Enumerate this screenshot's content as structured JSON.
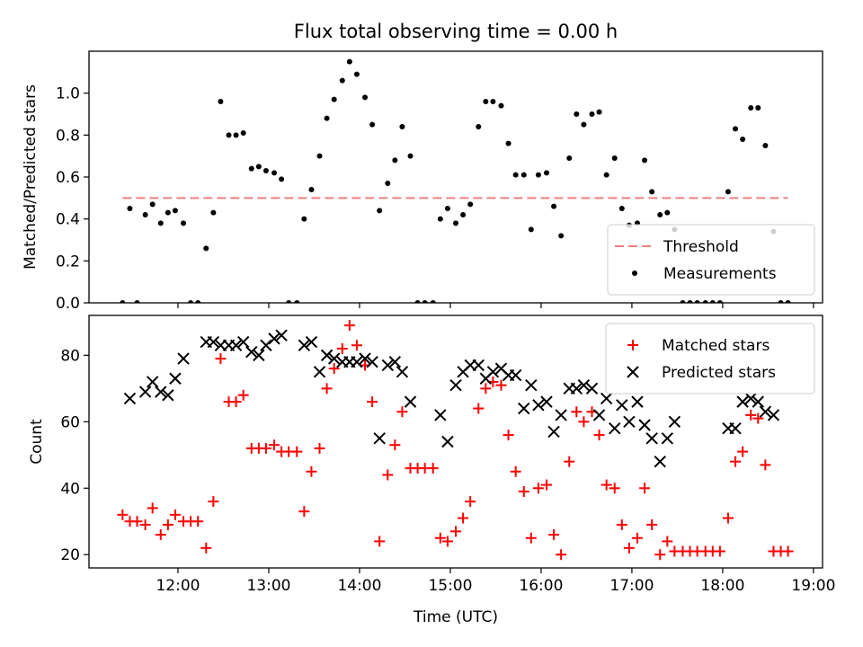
{
  "figure": {
    "title": "Flux total observing time = 0.00 h"
  },
  "chart_data": [
    {
      "type": "scatter",
      "title": "Flux total observing time = 0.00 h",
      "xlabel": "",
      "ylabel": "Matched/Predicted stars",
      "x_unit": "hours (UTC)",
      "xlim": [
        11.02,
        19.1
      ],
      "ylim": [
        0.0,
        1.2
      ],
      "y_ticks": [
        "0.0",
        "0.2",
        "0.4",
        "0.6",
        "0.8",
        "1.0"
      ],
      "x_ticks": [
        12,
        13,
        14,
        15,
        16,
        17,
        18,
        19
      ],
      "legend_position": "lower right",
      "threshold": {
        "name": "Threshold",
        "value": 0.5,
        "x_range": [
          11.39,
          18.72
        ],
        "color": "#f08080",
        "style": "dashed"
      },
      "series": [
        {
          "name": "Measurements",
          "marker": "dot",
          "color": "#000000",
          "points": [
            [
              11.39,
              0.0
            ],
            [
              11.47,
              0.45
            ],
            [
              11.55,
              0.0
            ],
            [
              11.64,
              0.42
            ],
            [
              11.72,
              0.47
            ],
            [
              11.81,
              0.38
            ],
            [
              11.89,
              0.43
            ],
            [
              11.97,
              0.44
            ],
            [
              12.06,
              0.38
            ],
            [
              12.14,
              0.0
            ],
            [
              12.22,
              0.0
            ],
            [
              12.31,
              0.26
            ],
            [
              12.39,
              0.43
            ],
            [
              12.47,
              0.96
            ],
            [
              12.56,
              0.8
            ],
            [
              12.64,
              0.8
            ],
            [
              12.72,
              0.81
            ],
            [
              12.81,
              0.64
            ],
            [
              12.89,
              0.65
            ],
            [
              12.97,
              0.63
            ],
            [
              13.06,
              0.62
            ],
            [
              13.14,
              0.59
            ],
            [
              13.22,
              0.0
            ],
            [
              13.31,
              0.0
            ],
            [
              13.39,
              0.4
            ],
            [
              13.47,
              0.54
            ],
            [
              13.56,
              0.7
            ],
            [
              13.64,
              0.88
            ],
            [
              13.72,
              0.97
            ],
            [
              13.81,
              1.06
            ],
            [
              13.89,
              1.15
            ],
            [
              13.97,
              1.09
            ],
            [
              14.06,
              0.98
            ],
            [
              14.14,
              0.85
            ],
            [
              14.22,
              0.44
            ],
            [
              14.31,
              0.57
            ],
            [
              14.39,
              0.68
            ],
            [
              14.47,
              0.84
            ],
            [
              14.56,
              0.7
            ],
            [
              14.64,
              0.0
            ],
            [
              14.72,
              0.0
            ],
            [
              14.81,
              0.0
            ],
            [
              14.89,
              0.4
            ],
            [
              14.97,
              0.45
            ],
            [
              15.06,
              0.38
            ],
            [
              15.14,
              0.42
            ],
            [
              15.22,
              0.47
            ],
            [
              15.31,
              0.84
            ],
            [
              15.39,
              0.96
            ],
            [
              15.47,
              0.96
            ],
            [
              15.56,
              0.94
            ],
            [
              15.64,
              0.76
            ],
            [
              15.72,
              0.61
            ],
            [
              15.81,
              0.61
            ],
            [
              15.89,
              0.35
            ],
            [
              15.97,
              0.61
            ],
            [
              16.06,
              0.62
            ],
            [
              16.14,
              0.46
            ],
            [
              16.22,
              0.32
            ],
            [
              16.31,
              0.69
            ],
            [
              16.39,
              0.9
            ],
            [
              16.47,
              0.85
            ],
            [
              16.56,
              0.9
            ],
            [
              16.64,
              0.91
            ],
            [
              16.72,
              0.61
            ],
            [
              16.81,
              0.69
            ],
            [
              16.89,
              0.45
            ],
            [
              16.97,
              0.37
            ],
            [
              17.06,
              0.38
            ],
            [
              17.14,
              0.68
            ],
            [
              17.22,
              0.53
            ],
            [
              17.31,
              0.42
            ],
            [
              17.39,
              0.43
            ],
            [
              17.47,
              0.35
            ],
            [
              17.56,
              0.0
            ],
            [
              17.64,
              0.0
            ],
            [
              17.72,
              0.0
            ],
            [
              17.81,
              0.0
            ],
            [
              17.89,
              0.0
            ],
            [
              17.97,
              0.0
            ],
            [
              18.06,
              0.53
            ],
            [
              18.14,
              0.83
            ],
            [
              18.22,
              0.78
            ],
            [
              18.31,
              0.93
            ],
            [
              18.39,
              0.93
            ],
            [
              18.47,
              0.75
            ],
            [
              18.56,
              0.34
            ],
            [
              18.64,
              0.0
            ],
            [
              18.72,
              0.0
            ]
          ]
        }
      ]
    },
    {
      "type": "scatter",
      "title": "",
      "xlabel": "Time (UTC)",
      "ylabel": "Count",
      "x_unit": "hours (UTC)",
      "xlim": [
        11.02,
        19.1
      ],
      "ylim": [
        16,
        92
      ],
      "y_ticks": [
        "20",
        "40",
        "60",
        "80"
      ],
      "x_ticks": [
        "12:00",
        "13:00",
        "14:00",
        "15:00",
        "16:00",
        "17:00",
        "18:00",
        "19:00"
      ],
      "legend_position": "upper right",
      "series": [
        {
          "name": "Matched stars",
          "marker": "plus",
          "color": "#ff0000",
          "points": [
            [
              11.39,
              32
            ],
            [
              11.47,
              30
            ],
            [
              11.55,
              30
            ],
            [
              11.64,
              29
            ],
            [
              11.72,
              34
            ],
            [
              11.81,
              26
            ],
            [
              11.89,
              29
            ],
            [
              11.97,
              32
            ],
            [
              12.06,
              30
            ],
            [
              12.14,
              30
            ],
            [
              12.22,
              30
            ],
            [
              12.31,
              22
            ],
            [
              12.39,
              36
            ],
            [
              12.47,
              79
            ],
            [
              12.56,
              66
            ],
            [
              12.64,
              66
            ],
            [
              12.72,
              68
            ],
            [
              12.81,
              52
            ],
            [
              12.89,
              52
            ],
            [
              12.97,
              52
            ],
            [
              13.06,
              53
            ],
            [
              13.14,
              51
            ],
            [
              13.22,
              51
            ],
            [
              13.31,
              51
            ],
            [
              13.39,
              33
            ],
            [
              13.47,
              45
            ],
            [
              13.56,
              52
            ],
            [
              13.64,
              70
            ],
            [
              13.72,
              76
            ],
            [
              13.81,
              82
            ],
            [
              13.89,
              89
            ],
            [
              13.97,
              83
            ],
            [
              14.06,
              77
            ],
            [
              14.14,
              66
            ],
            [
              14.22,
              24
            ],
            [
              14.31,
              44
            ],
            [
              14.39,
              53
            ],
            [
              14.47,
              63
            ],
            [
              14.56,
              46
            ],
            [
              14.64,
              46
            ],
            [
              14.72,
              46
            ],
            [
              14.81,
              46
            ],
            [
              14.89,
              25
            ],
            [
              14.97,
              24
            ],
            [
              15.06,
              27
            ],
            [
              15.14,
              31
            ],
            [
              15.22,
              36
            ],
            [
              15.31,
              64
            ],
            [
              15.39,
              70
            ],
            [
              15.47,
              72
            ],
            [
              15.56,
              71
            ],
            [
              15.64,
              56
            ],
            [
              15.72,
              45
            ],
            [
              15.81,
              39
            ],
            [
              15.89,
              25
            ],
            [
              15.97,
              40
            ],
            [
              16.06,
              41
            ],
            [
              16.14,
              26
            ],
            [
              16.22,
              20
            ],
            [
              16.31,
              48
            ],
            [
              16.39,
              63
            ],
            [
              16.47,
              60
            ],
            [
              16.56,
              63
            ],
            [
              16.64,
              56
            ],
            [
              16.72,
              41
            ],
            [
              16.81,
              40
            ],
            [
              16.89,
              29
            ],
            [
              16.97,
              22
            ],
            [
              17.06,
              25
            ],
            [
              17.14,
              40
            ],
            [
              17.22,
              29
            ],
            [
              17.31,
              20
            ],
            [
              17.39,
              24
            ],
            [
              17.47,
              21
            ],
            [
              17.56,
              21
            ],
            [
              17.64,
              21
            ],
            [
              17.72,
              21
            ],
            [
              17.81,
              21
            ],
            [
              17.89,
              21
            ],
            [
              17.97,
              21
            ],
            [
              18.06,
              31
            ],
            [
              18.14,
              48
            ],
            [
              18.22,
              51
            ],
            [
              18.31,
              62
            ],
            [
              18.39,
              61
            ],
            [
              18.47,
              47
            ],
            [
              18.56,
              21
            ],
            [
              18.64,
              21
            ],
            [
              18.72,
              21
            ]
          ]
        },
        {
          "name": "Predicted stars",
          "marker": "x",
          "color": "#000000",
          "points": [
            [
              11.47,
              67
            ],
            [
              11.64,
              69
            ],
            [
              11.72,
              72
            ],
            [
              11.81,
              69
            ],
            [
              11.89,
              68
            ],
            [
              11.97,
              73
            ],
            [
              12.06,
              79
            ],
            [
              12.31,
              84
            ],
            [
              12.39,
              84
            ],
            [
              12.47,
              83
            ],
            [
              12.56,
              83
            ],
            [
              12.64,
              83
            ],
            [
              12.72,
              84
            ],
            [
              12.81,
              81
            ],
            [
              12.89,
              80
            ],
            [
              12.97,
              83
            ],
            [
              13.06,
              85
            ],
            [
              13.14,
              86
            ],
            [
              13.39,
              83
            ],
            [
              13.47,
              84
            ],
            [
              13.56,
              75
            ],
            [
              13.64,
              80
            ],
            [
              13.72,
              79
            ],
            [
              13.81,
              78
            ],
            [
              13.89,
              78
            ],
            [
              13.97,
              78
            ],
            [
              14.06,
              79
            ],
            [
              14.14,
              78
            ],
            [
              14.22,
              55
            ],
            [
              14.31,
              77
            ],
            [
              14.39,
              78
            ],
            [
              14.47,
              75
            ],
            [
              14.56,
              66
            ],
            [
              14.89,
              62
            ],
            [
              14.97,
              54
            ],
            [
              15.06,
              71
            ],
            [
              15.14,
              75
            ],
            [
              15.22,
              77
            ],
            [
              15.31,
              77
            ],
            [
              15.39,
              73
            ],
            [
              15.47,
              75
            ],
            [
              15.56,
              76
            ],
            [
              15.64,
              74
            ],
            [
              15.72,
              74
            ],
            [
              15.81,
              64
            ],
            [
              15.89,
              71
            ],
            [
              15.97,
              65
            ],
            [
              16.06,
              66
            ],
            [
              16.14,
              57
            ],
            [
              16.22,
              62
            ],
            [
              16.31,
              70
            ],
            [
              16.39,
              70
            ],
            [
              16.47,
              71
            ],
            [
              16.56,
              70
            ],
            [
              16.64,
              62
            ],
            [
              16.72,
              67
            ],
            [
              16.81,
              58
            ],
            [
              16.89,
              65
            ],
            [
              16.97,
              60
            ],
            [
              17.06,
              66
            ],
            [
              17.14,
              59
            ],
            [
              17.22,
              55
            ],
            [
              17.31,
              48
            ],
            [
              17.39,
              55
            ],
            [
              17.47,
              60
            ],
            [
              18.06,
              58
            ],
            [
              18.14,
              58
            ],
            [
              18.22,
              66
            ],
            [
              18.31,
              67
            ],
            [
              18.39,
              66
            ],
            [
              18.47,
              63
            ],
            [
              18.56,
              62
            ]
          ]
        }
      ]
    }
  ]
}
